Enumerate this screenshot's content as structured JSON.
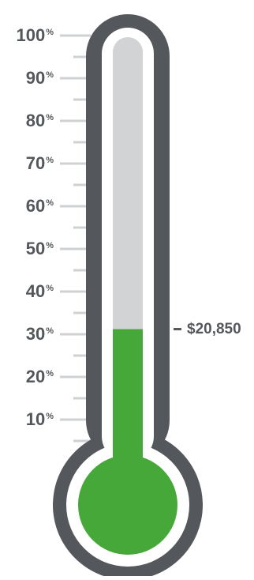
{
  "thermometer": {
    "scale_max": 100,
    "progress_percent": 31.2,
    "amount_label": "$20,850",
    "labels": [
      {
        "value": 100,
        "text": "100",
        "unit": "%"
      },
      {
        "value": 90,
        "text": "90",
        "unit": "%"
      },
      {
        "value": 80,
        "text": "80",
        "unit": "%"
      },
      {
        "value": 70,
        "text": "70",
        "unit": "%"
      },
      {
        "value": 60,
        "text": "60",
        "unit": "%"
      },
      {
        "value": 50,
        "text": "50",
        "unit": "%"
      },
      {
        "value": 40,
        "text": "40",
        "unit": "%"
      },
      {
        "value": 30,
        "text": "30",
        "unit": "%"
      },
      {
        "value": 20,
        "text": "20",
        "unit": "%"
      },
      {
        "value": 10,
        "text": "10",
        "unit": "%"
      }
    ],
    "colors": {
      "outline": "#54575b",
      "track": "#d1d3d4",
      "fill": "#47a83a",
      "tick": "#cfd1d3",
      "text": "#54575b",
      "background": "#ffffff"
    }
  }
}
